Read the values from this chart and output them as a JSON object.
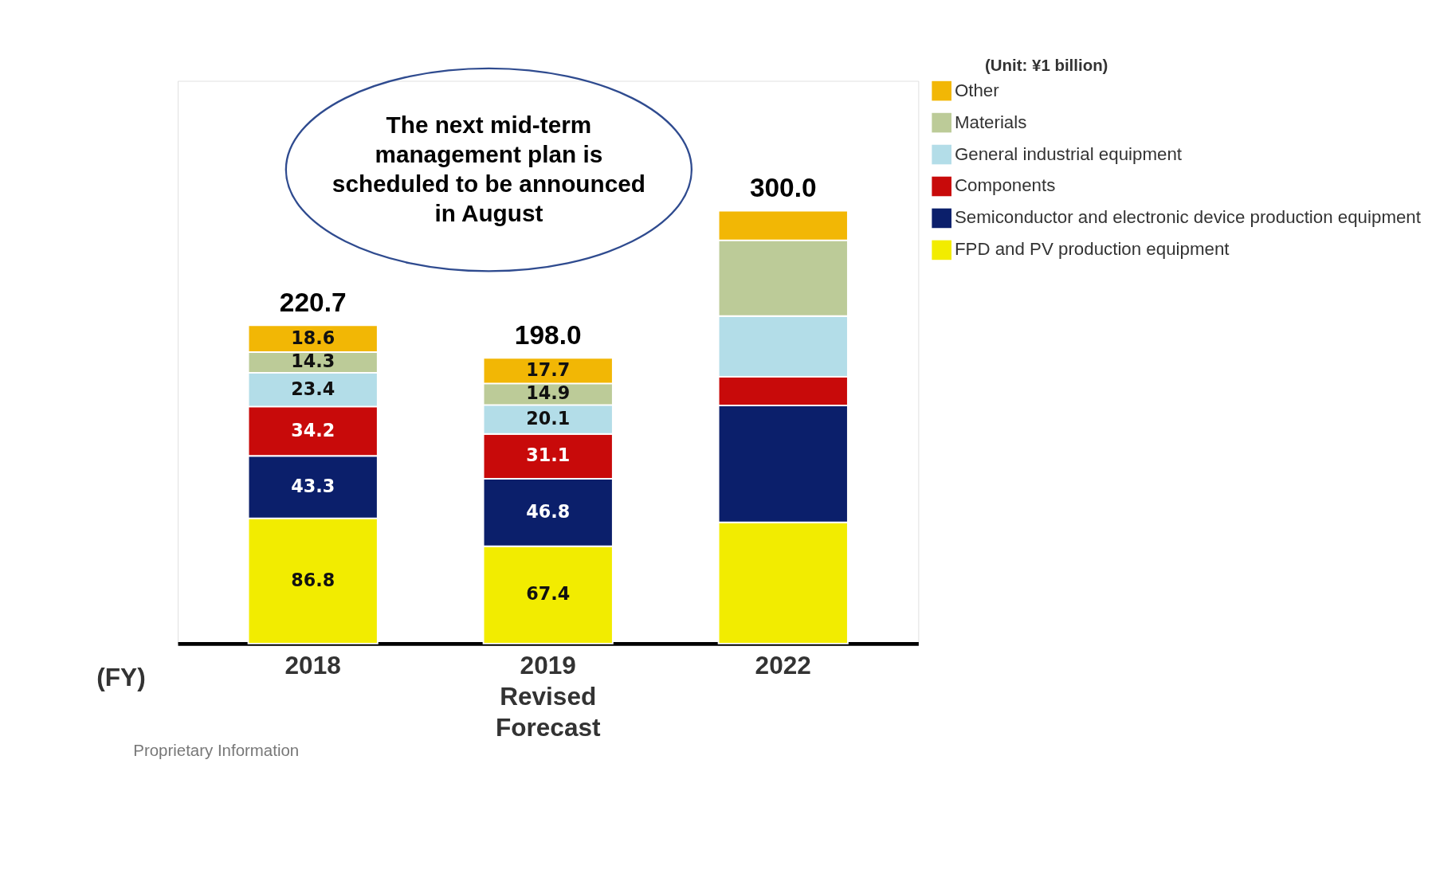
{
  "chart_data": {
    "type": "bar",
    "stacked": true,
    "categories": [
      "2018",
      "2019 Revised Forecast",
      "2022"
    ],
    "xlabel": "(FY)",
    "series": [
      {
        "name": "FPD and PV production equipment",
        "color": "#f2ec00",
        "values": [
          86.8,
          67.4,
          84
        ],
        "value_labels": [
          "86.8",
          "67.4",
          null
        ]
      },
      {
        "name": "Semiconductor and electronic device production equipment",
        "color": "#0b1f6b",
        "values": [
          43.3,
          46.8,
          81
        ],
        "value_labels": [
          "43.3",
          "46.8",
          null
        ]
      },
      {
        "name": "Components",
        "color": "#c80a0a",
        "values": [
          34.2,
          31.1,
          20
        ],
        "value_labels": [
          "34.2",
          "31.1",
          null
        ]
      },
      {
        "name": "General industrial equipment",
        "color": "#b3dde8",
        "values": [
          23.4,
          20.1,
          42
        ],
        "value_labels": [
          "23.4",
          "20.1",
          null
        ]
      },
      {
        "name": "Materials",
        "color": "#bccb98",
        "values": [
          14.3,
          14.9,
          52.5
        ],
        "value_labels": [
          "14.3",
          "14.9",
          null
        ]
      },
      {
        "name": "Other",
        "color": "#f2b705",
        "values": [
          18.6,
          17.7,
          20.5
        ],
        "value_labels": [
          "18.6",
          "17.7",
          null
        ]
      }
    ],
    "totals": [
      "220.7",
      "198.0",
      "300.0"
    ],
    "legend": "right",
    "annotations": [
      "(Unit: ¥1 billion)",
      "The next mid-term management plan is scheduled to be announced in August",
      "Proprietary Information"
    ]
  }
}
